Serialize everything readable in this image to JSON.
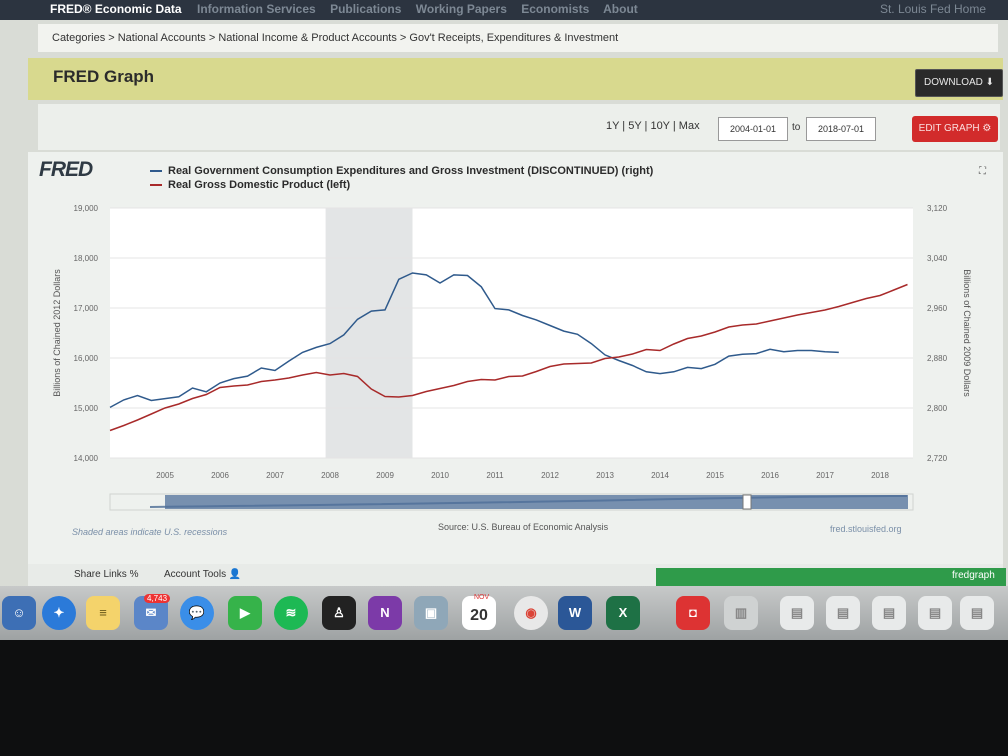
{
  "nav": {
    "brand": "FRED® Economic Data",
    "links": [
      "Information Services",
      "Publications",
      "Working Papers",
      "Economists",
      "About"
    ],
    "home": "St. Louis Fed Home"
  },
  "breadcrumb": "Categories > National Accounts > National Income & Product Accounts > Gov't Receipts, Expenditures & Investment",
  "header": {
    "title": "FRED Graph",
    "download_label": "DOWNLOAD ⬇"
  },
  "controls": {
    "ranges": "1Y | 5Y | 10Y | Max",
    "start_date": "2004-01-01",
    "to_label": "to",
    "end_date": "2018-07-01",
    "edit_label": "EDIT GRAPH ⚙"
  },
  "graph": {
    "logo": "FRED",
    "shaded_note": "Shaded areas indicate U.S. recessions",
    "source": "Source: U.S. Bureau of Economic Analysis",
    "site": "fred.stlouisfed.org"
  },
  "footer": {
    "share_links": "Share Links %",
    "account_tools": "Account Tools 👤"
  },
  "dock": {
    "badge": "4,743",
    "calendar_month": "NOV",
    "calendar_day": "20",
    "word": "W",
    "excel": "X",
    "onenote": "N",
    "window_label": "fredgraph"
  },
  "chart_data": {
    "type": "line",
    "left_axis_label": "Billions of Chained 2012 Dollars",
    "right_axis_label": "Billions of Chained 2009 Dollars",
    "left_ticks": [
      14000,
      15000,
      16000,
      17000,
      18000,
      19000
    ],
    "left_tick_labels": [
      "14,000",
      "15,000",
      "16,000",
      "17,000",
      "18,000",
      "19,000"
    ],
    "right_ticks": [
      2720,
      2800,
      2880,
      2960,
      3040,
      3120
    ],
    "right_tick_labels": [
      "2,720",
      "2,800",
      "2,880",
      "2,960",
      "3,040",
      "3,120"
    ],
    "x_ticks": [
      "2005",
      "2006",
      "2007",
      "2008",
      "2009",
      "2010",
      "2011",
      "2012",
      "2013",
      "2014",
      "2015",
      "2016",
      "2017",
      "2018"
    ],
    "left_range": [
      14000,
      19000
    ],
    "right_range": [
      2720,
      3120
    ],
    "x_range": [
      2004.0,
      2018.6
    ],
    "recessions": [
      [
        2007.92,
        2009.5
      ]
    ],
    "series": [
      {
        "name": "Real Government Consumption Expenditures and Gross Investment (DISCONTINUED) (right)",
        "axis": "right",
        "color": "#2f5a8c",
        "x": [
          2004.0,
          2004.25,
          2004.5,
          2004.75,
          2005.0,
          2005.25,
          2005.5,
          2005.75,
          2006.0,
          2006.25,
          2006.5,
          2006.75,
          2007.0,
          2007.25,
          2007.5,
          2007.75,
          2008.0,
          2008.25,
          2008.5,
          2008.75,
          2009.0,
          2009.25,
          2009.5,
          2009.75,
          2010.0,
          2010.25,
          2010.5,
          2010.75,
          2011.0,
          2011.25,
          2011.5,
          2011.75,
          2012.0,
          2012.25,
          2012.5,
          2012.75,
          2013.0,
          2013.25,
          2013.5,
          2013.75,
          2014.0,
          2014.25,
          2014.5,
          2014.75,
          2015.0,
          2015.25,
          2015.5,
          2015.75,
          2016.0,
          2016.25,
          2016.5,
          2016.75,
          2017.0,
          2017.25
        ],
        "values": [
          2801,
          2813,
          2820,
          2812,
          2815,
          2818,
          2832,
          2826,
          2840,
          2847,
          2851,
          2864,
          2860,
          2875,
          2889,
          2897,
          2903,
          2917,
          2942,
          2955,
          2957,
          3006,
          3016,
          3013,
          3000,
          3013,
          3012,
          2994,
          2959,
          2957,
          2948,
          2941,
          2932,
          2923,
          2918,
          2903,
          2885,
          2876,
          2868,
          2858,
          2855,
          2858,
          2865,
          2863,
          2870,
          2883,
          2886,
          2887,
          2894,
          2890,
          2892,
          2892,
          2890,
          2889
        ]
      },
      {
        "name": "Real Gross Domestic Product (left)",
        "axis": "left",
        "color": "#a82a2a",
        "x": [
          2004.0,
          2004.25,
          2004.5,
          2004.75,
          2005.0,
          2005.25,
          2005.5,
          2005.75,
          2006.0,
          2006.25,
          2006.5,
          2006.75,
          2007.0,
          2007.25,
          2007.5,
          2007.75,
          2008.0,
          2008.25,
          2008.5,
          2008.75,
          2009.0,
          2009.25,
          2009.5,
          2009.75,
          2010.0,
          2010.25,
          2010.5,
          2010.75,
          2011.0,
          2011.25,
          2011.5,
          2011.75,
          2012.0,
          2012.25,
          2012.5,
          2012.75,
          2013.0,
          2013.25,
          2013.5,
          2013.75,
          2014.0,
          2014.25,
          2014.5,
          2014.75,
          2015.0,
          2015.25,
          2015.5,
          2015.75,
          2016.0,
          2016.25,
          2016.5,
          2016.75,
          2017.0,
          2017.25,
          2017.5,
          2017.75,
          2018.0,
          2018.25,
          2018.5
        ],
        "values": [
          14550,
          14650,
          14760,
          14880,
          15000,
          15080,
          15190,
          15270,
          15410,
          15440,
          15460,
          15530,
          15560,
          15600,
          15660,
          15710,
          15660,
          15690,
          15630,
          15380,
          15230,
          15220,
          15250,
          15330,
          15390,
          15450,
          15530,
          15570,
          15560,
          15630,
          15640,
          15730,
          15830,
          15880,
          15890,
          15900,
          15990,
          16020,
          16080,
          16170,
          16150,
          16280,
          16390,
          16440,
          16520,
          16620,
          16660,
          16680,
          16740,
          16800,
          16860,
          16910,
          16960,
          17030,
          17110,
          17190,
          17250,
          17360,
          17470
        ]
      }
    ]
  }
}
